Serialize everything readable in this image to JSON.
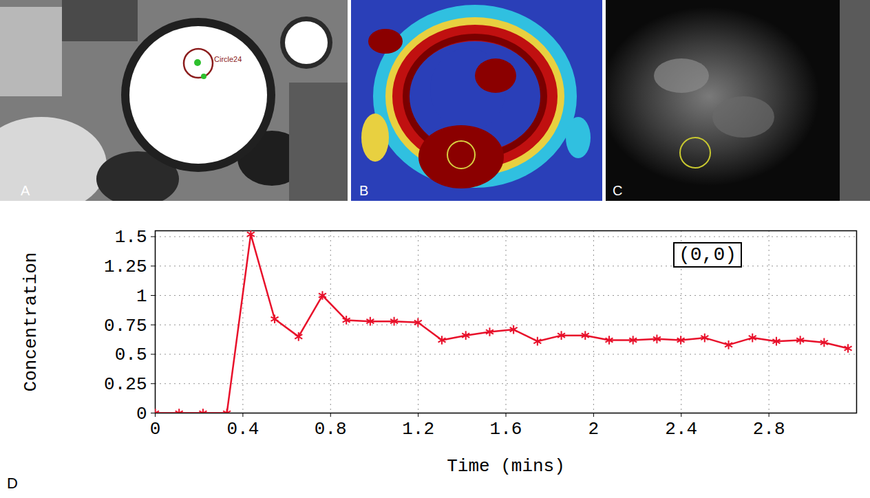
{
  "image_panels": [
    {
      "letter": "A",
      "roi_label": "Circle24"
    },
    {
      "letter": "B"
    },
    {
      "letter": "C"
    }
  ],
  "chart_letter": "D",
  "chart_data": {
    "type": "line",
    "x_label": "Time (mins)",
    "y_label": "Concentration",
    "annotations": [
      "(0,0)"
    ],
    "x": [
      0,
      0.109,
      0.218,
      0.327,
      0.436,
      0.545,
      0.654,
      0.763,
      0.872,
      0.981,
      1.09,
      1.199,
      1.308,
      1.417,
      1.526,
      1.635,
      1.744,
      1.853,
      1.962,
      2.071,
      2.18,
      2.289,
      2.398,
      2.507,
      2.616,
      2.725,
      2.834,
      2.943,
      3.052,
      3.161
    ],
    "values": [
      0,
      0,
      0,
      0,
      1.52,
      0.8,
      0.65,
      1.0,
      0.79,
      0.78,
      0.78,
      0.77,
      0.62,
      0.66,
      0.69,
      0.71,
      0.61,
      0.66,
      0.66,
      0.62,
      0.62,
      0.63,
      0.62,
      0.64,
      0.58,
      0.64,
      0.61,
      0.62,
      0.6,
      0.55
    ],
    "color": "#e8102a",
    "marker": "asterisk",
    "line_style": "solid",
    "xlim": [
      0,
      3.2
    ],
    "ylim": [
      0,
      1.55
    ],
    "xticks": [
      0,
      0.4,
      0.8,
      1.2,
      1.6,
      2,
      2.4,
      2.8
    ],
    "yticks": [
      0,
      0.25,
      0.5,
      0.75,
      1,
      1.25,
      1.5
    ],
    "grid": true
  }
}
